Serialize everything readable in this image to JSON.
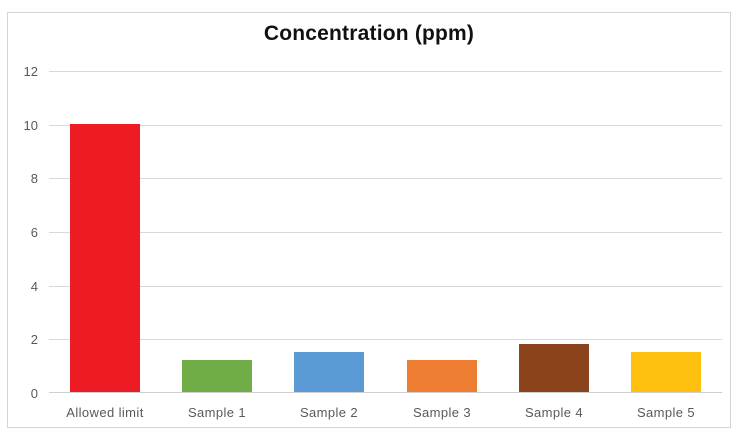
{
  "chart_data": {
    "type": "bar",
    "title": "Concentration (ppm)",
    "categories": [
      "Allowed limit",
      "Sample 1",
      "Sample 2",
      "Sample 3",
      "Sample 4",
      "Sample 5"
    ],
    "values": [
      10,
      1.2,
      1.5,
      1.2,
      1.8,
      1.5
    ],
    "bar_colors": [
      "#ED1C24",
      "#70AD47",
      "#5B9BD5",
      "#ED7D31",
      "#8A431B",
      "#FFC010"
    ],
    "xlabel": "",
    "ylabel": "",
    "ylim": [
      0,
      12
    ],
    "ytick_step": 2,
    "ytick_labels": [
      "0",
      "2",
      "4",
      "6",
      "8",
      "10",
      "12"
    ],
    "grid": true,
    "legend": "none"
  },
  "colors": {
    "grid": "#d9d9d9",
    "axis_text": "#595959",
    "title_text": "#111111",
    "frame_border": "#d4d4d4",
    "background": "#ffffff"
  }
}
